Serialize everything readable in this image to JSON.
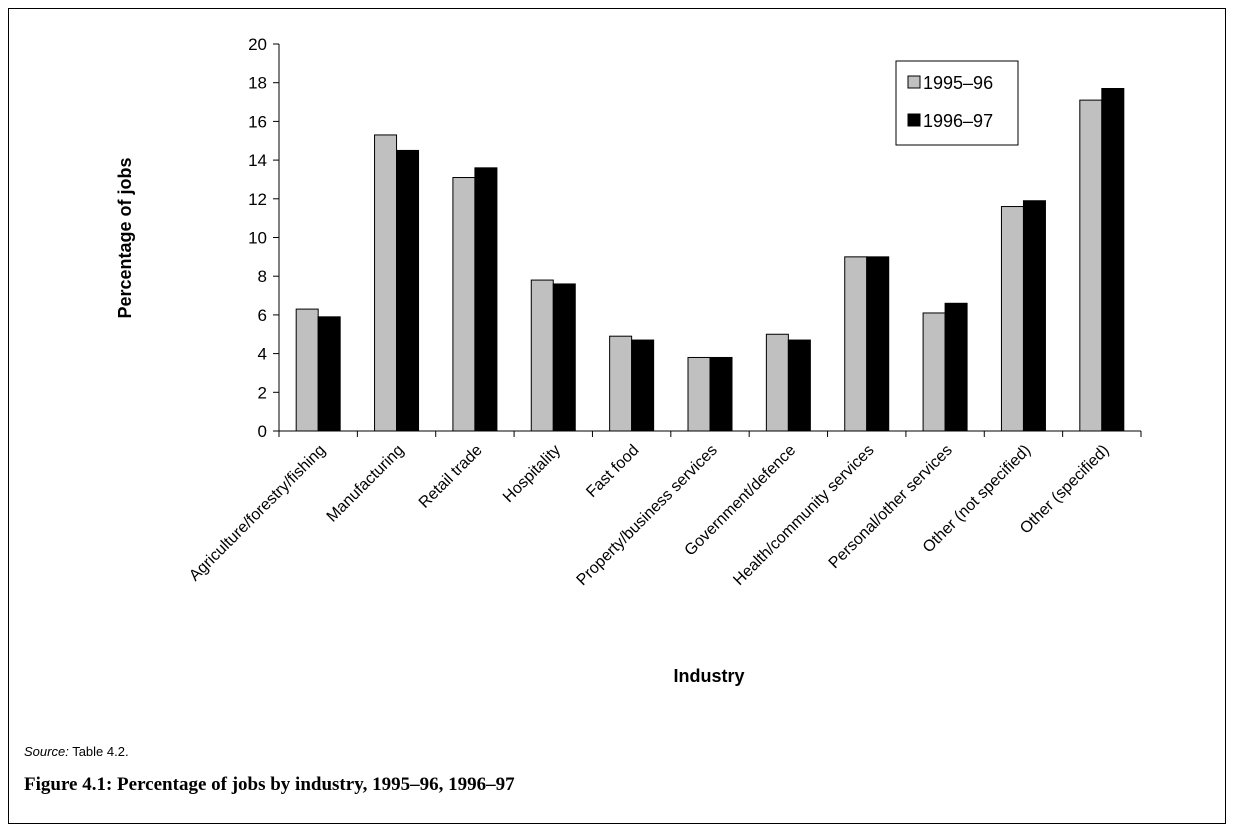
{
  "chart_data": {
    "type": "bar",
    "categories": [
      "Agriculture/forestry/fishing",
      "Manufacturing",
      "Retail trade",
      "Hospitality",
      "Fast food",
      "Property/business services",
      "Government/defence",
      "Health/community services",
      "Personal/other services",
      "Other (not specified)",
      "Other (specified)"
    ],
    "series": [
      {
        "name": "1995–96",
        "color": "#c0c0c0",
        "values": [
          6.3,
          15.3,
          13.1,
          7.8,
          4.9,
          3.8,
          5.0,
          9.0,
          6.1,
          11.6,
          17.1
        ]
      },
      {
        "name": "1996–97",
        "color": "#000000",
        "values": [
          5.9,
          14.5,
          13.6,
          7.6,
          4.7,
          3.8,
          4.7,
          9.0,
          6.6,
          11.9,
          17.7
        ]
      }
    ],
    "xlabel": "Industry",
    "ylabel": "Percentage of jobs",
    "ylim": [
      0,
      20
    ],
    "yticks": [
      0,
      2,
      4,
      6,
      8,
      10,
      12,
      14,
      16,
      18,
      20
    ],
    "legend_position": "top-right",
    "grid": false
  },
  "source": {
    "prefix": "Source:",
    "text": "Table 4.2."
  },
  "caption": "Figure 4.1: Percentage of jobs by industry, 1995–96, 1996–97"
}
